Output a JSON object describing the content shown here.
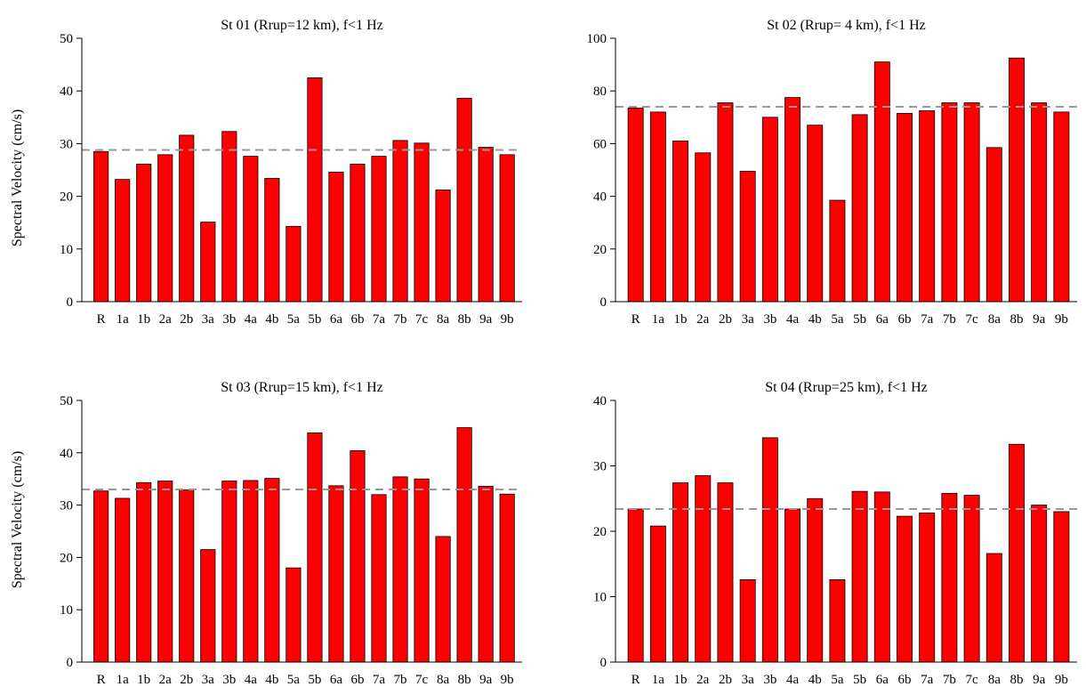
{
  "y_axis_label": "Spectral Velocity (cm/s)",
  "colors": {
    "bar": "#ff0000",
    "reference_line": "#999999",
    "axis": "#000000"
  },
  "chart_data": [
    {
      "type": "bar",
      "title": "St 01 (Rrup=12 km), f<1 Hz",
      "ylabel": "Spectral Velocity (cm/s)",
      "xlabel": "",
      "ylim": [
        0,
        50
      ],
      "yticks": [
        0,
        10,
        20,
        30,
        40,
        50
      ],
      "categories": [
        "R",
        "1a",
        "1b",
        "2a",
        "2b",
        "3a",
        "3b",
        "4a",
        "4b",
        "5a",
        "5b",
        "6a",
        "6b",
        "7a",
        "7b",
        "7c",
        "8a",
        "8b",
        "9a",
        "9b"
      ],
      "values": [
        28.5,
        23.2,
        26.1,
        27.9,
        31.6,
        15.1,
        32.3,
        27.6,
        23.4,
        14.3,
        42.5,
        24.6,
        26.1,
        27.6,
        30.6,
        30.1,
        21.2,
        38.6,
        29.3,
        27.9
      ],
      "reference_line": 28.8,
      "grid": false
    },
    {
      "type": "bar",
      "title": "St 02 (Rrup= 4 km), f<1 Hz",
      "ylabel": "",
      "xlabel": "",
      "ylim": [
        0,
        100
      ],
      "yticks": [
        0,
        20,
        40,
        60,
        80,
        100
      ],
      "categories": [
        "R",
        "1a",
        "1b",
        "2a",
        "2b",
        "3a",
        "3b",
        "4a",
        "4b",
        "5a",
        "5b",
        "6a",
        "6b",
        "7a",
        "7b",
        "7c",
        "8a",
        "8b",
        "9a",
        "9b"
      ],
      "values": [
        73.5,
        72,
        61,
        56.5,
        75.5,
        49.5,
        70,
        77.5,
        67,
        38.5,
        71,
        91,
        71.5,
        72.5,
        75.5,
        75.5,
        58.5,
        92.5,
        75.5,
        72
      ],
      "reference_line": 74,
      "grid": false
    },
    {
      "type": "bar",
      "title": "St 03 (Rrup=15 km), f<1 Hz",
      "ylabel": "Spectral Velocity (cm/s)",
      "xlabel": "",
      "ylim": [
        0,
        50
      ],
      "yticks": [
        0,
        10,
        20,
        30,
        40,
        50
      ],
      "categories": [
        "R",
        "1a",
        "1b",
        "2a",
        "2b",
        "3a",
        "3b",
        "4a",
        "4b",
        "5a",
        "5b",
        "6a",
        "6b",
        "7a",
        "7b",
        "7c",
        "8a",
        "8b",
        "9a",
        "9b"
      ],
      "values": [
        32.7,
        31.3,
        34.3,
        34.6,
        32.9,
        21.5,
        34.6,
        34.7,
        35.1,
        18,
        43.8,
        33.7,
        40.4,
        32,
        35.4,
        35,
        24,
        44.8,
        33.6,
        32.1
      ],
      "reference_line": 33,
      "grid": false
    },
    {
      "type": "bar",
      "title": "St 04 (Rrup=25 km), f<1 Hz",
      "ylabel": "",
      "xlabel": "",
      "ylim": [
        0,
        40
      ],
      "yticks": [
        0,
        10,
        20,
        30,
        40
      ],
      "categories": [
        "R",
        "1a",
        "1b",
        "2a",
        "2b",
        "3a",
        "3b",
        "4a",
        "4b",
        "5a",
        "5b",
        "6a",
        "6b",
        "7a",
        "7b",
        "7c",
        "8a",
        "8b",
        "9a",
        "9b"
      ],
      "values": [
        23.4,
        20.8,
        27.4,
        28.5,
        27.4,
        12.6,
        34.3,
        23.4,
        25,
        12.6,
        26.1,
        26,
        22.3,
        22.8,
        25.8,
        25.5,
        16.6,
        33.3,
        24,
        23
      ],
      "reference_line": 23.4,
      "grid": false
    }
  ]
}
